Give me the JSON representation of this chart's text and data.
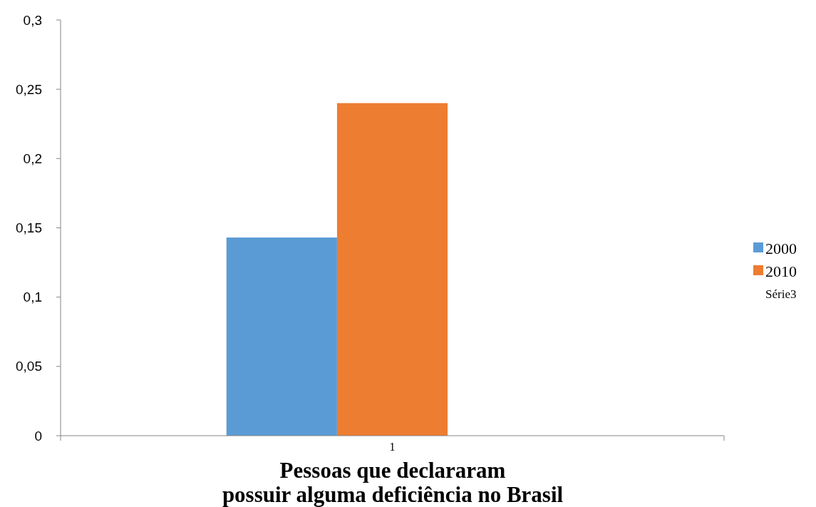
{
  "chart_data": {
    "type": "bar",
    "categories": [
      "1"
    ],
    "xlabel": "Pessoas que declararam possuir alguma deficiência no Brasil",
    "series": [
      {
        "name": "2000",
        "color": "#5b9bd5",
        "values": [
          0.143
        ]
      },
      {
        "name": "2010",
        "color": "#ed7d31",
        "values": [
          0.24
        ]
      },
      {
        "name": "Série3",
        "values": [
          null
        ]
      }
    ],
    "ylim": [
      0,
      0.3
    ],
    "yticks": [
      {
        "value": 0,
        "label": "0"
      },
      {
        "value": 0.05,
        "label": "0,05"
      },
      {
        "value": 0.1,
        "label": "0,1"
      },
      {
        "value": 0.15,
        "label": "0,15"
      },
      {
        "value": 0.2,
        "label": "0,2"
      },
      {
        "value": 0.25,
        "label": "0,25"
      },
      {
        "value": 0.3,
        "label": "0,3"
      }
    ],
    "grid": false,
    "legend": "right"
  }
}
